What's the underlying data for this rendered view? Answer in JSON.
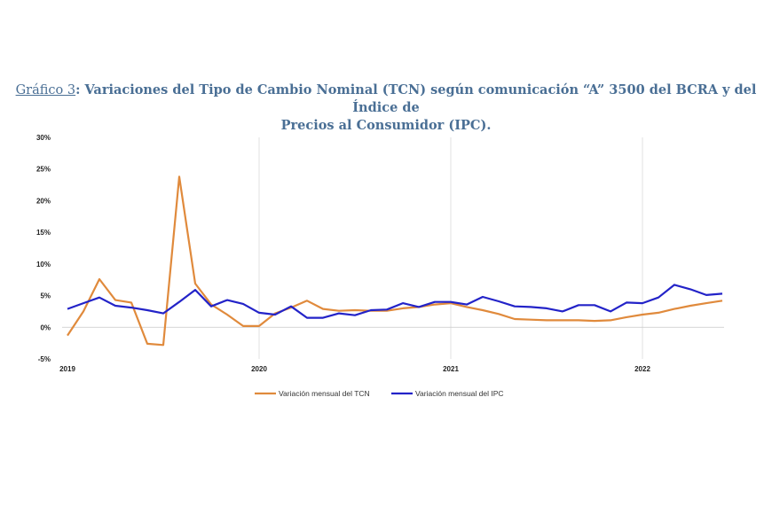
{
  "title": {
    "label": "Gráfico 3",
    "separator": ": ",
    "line1_rest": "Variaciones del Tipo de Cambio Nominal (TCN) según comunicación “A” 3500 del BCRA y del Índice de",
    "line2": "Precios al Consumidor (IPC)."
  },
  "chart_data": {
    "type": "line",
    "y_ticks": [
      "30%",
      "25%",
      "20%",
      "15%",
      "10%",
      "5%",
      "0%",
      "-5%"
    ],
    "ylim": [
      -5,
      30
    ],
    "x_tick_labels": [
      "2019",
      "2020",
      "2021",
      "2022"
    ],
    "x_tick_index": [
      0,
      12,
      24,
      36
    ],
    "series": [
      {
        "name": "Variación mensual del TCN",
        "color": "#e08a3c",
        "values": [
          -1.3,
          2.5,
          7.6,
          4.3,
          3.9,
          -2.6,
          -2.8,
          23.8,
          6.9,
          3.6,
          2.0,
          0.2,
          0.2,
          2.2,
          3.1,
          4.2,
          2.9,
          2.6,
          2.7,
          2.6,
          2.6,
          3.0,
          3.2,
          3.6,
          3.8,
          3.2,
          2.7,
          2.1,
          1.3,
          1.2,
          1.1,
          1.1,
          1.1,
          1.0,
          1.1,
          1.6,
          2.0,
          2.3,
          2.9,
          3.4,
          3.8,
          4.2
        ]
      },
      {
        "name": "Variación mensual del IPC",
        "color": "#2323c8",
        "values": [
          2.9,
          3.8,
          4.7,
          3.4,
          3.1,
          2.7,
          2.2,
          4.0,
          5.9,
          3.3,
          4.3,
          3.7,
          2.3,
          2.0,
          3.3,
          1.5,
          1.5,
          2.2,
          1.9,
          2.7,
          2.8,
          3.8,
          3.2,
          4.0,
          4.0,
          3.6,
          4.8,
          4.1,
          3.3,
          3.2,
          3.0,
          2.5,
          3.5,
          3.5,
          2.5,
          3.9,
          3.8,
          4.7,
          6.7,
          6.0,
          5.1,
          5.3
        ]
      }
    ]
  }
}
